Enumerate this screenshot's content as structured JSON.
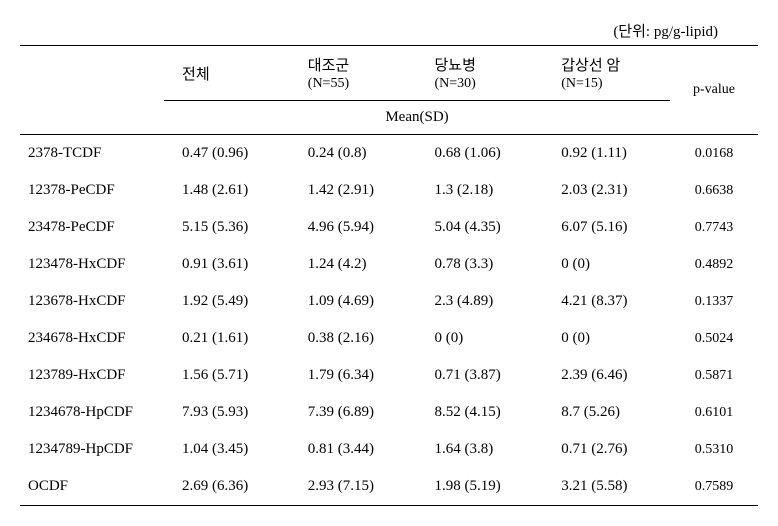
{
  "unit_label": "(단위: pg/g-lipid)",
  "headers": {
    "total": "전체",
    "control": {
      "line1": "대조군",
      "line2": "(N=55)"
    },
    "diabetes": {
      "line1": "당뇨병",
      "line2": "(N=30)"
    },
    "thyroid": {
      "line1": "갑상선 암",
      "line2": "(N=15)"
    },
    "pvalue": "p-value",
    "meansd": "Mean(SD)"
  },
  "rows": [
    {
      "compound": "2378-TCDF",
      "total": "0.47 (0.96)",
      "control": "0.24 (0.8)",
      "diabetes": "0.68 (1.06)",
      "thyroid": "0.92 (1.11)",
      "pvalue": "0.0168"
    },
    {
      "compound": "12378-PeCDF",
      "total": "1.48 (2.61)",
      "control": "1.42 (2.91)",
      "diabetes": "1.3 (2.18)",
      "thyroid": "2.03 (2.31)",
      "pvalue": "0.6638"
    },
    {
      "compound": "23478-PeCDF",
      "total": "5.15 (5.36)",
      "control": "4.96 (5.94)",
      "diabetes": "5.04 (4.35)",
      "thyroid": "6.07 (5.16)",
      "pvalue": "0.7743"
    },
    {
      "compound": "123478-HxCDF",
      "total": "0.91 (3.61)",
      "control": "1.24 (4.2)",
      "diabetes": "0.78 (3.3)",
      "thyroid": "0 (0)",
      "pvalue": "0.4892"
    },
    {
      "compound": "123678-HxCDF",
      "total": "1.92 (5.49)",
      "control": "1.09 (4.69)",
      "diabetes": "2.3 (4.89)",
      "thyroid": "4.21 (8.37)",
      "pvalue": "0.1337"
    },
    {
      "compound": "234678-HxCDF",
      "total": "0.21 (1.61)",
      "control": "0.38 (2.16)",
      "diabetes": "0 (0)",
      "thyroid": "0 (0)",
      "pvalue": "0.5024"
    },
    {
      "compound": "123789-HxCDF",
      "total": "1.56 (5.71)",
      "control": "1.79 (6.34)",
      "diabetes": "0.71 (3.87)",
      "thyroid": "2.39 (6.46)",
      "pvalue": "0.5871"
    },
    {
      "compound": "1234678-HpCDF",
      "total": "7.93 (5.93)",
      "control": "7.39 (6.89)",
      "diabetes": "8.52 (4.15)",
      "thyroid": "8.7 (5.26)",
      "pvalue": "0.6101"
    },
    {
      "compound": "1234789-HpCDF",
      "total": "1.04 (3.45)",
      "control": "0.81 (3.44)",
      "diabetes": "1.64 (3.8)",
      "thyroid": "0.71 (2.76)",
      "pvalue": "0.5310"
    },
    {
      "compound": "OCDF",
      "total": "2.69 (6.36)",
      "control": "2.93 (7.15)",
      "diabetes": "1.98 (5.19)",
      "thyroid": "3.21 (5.58)",
      "pvalue": "0.7589"
    }
  ]
}
